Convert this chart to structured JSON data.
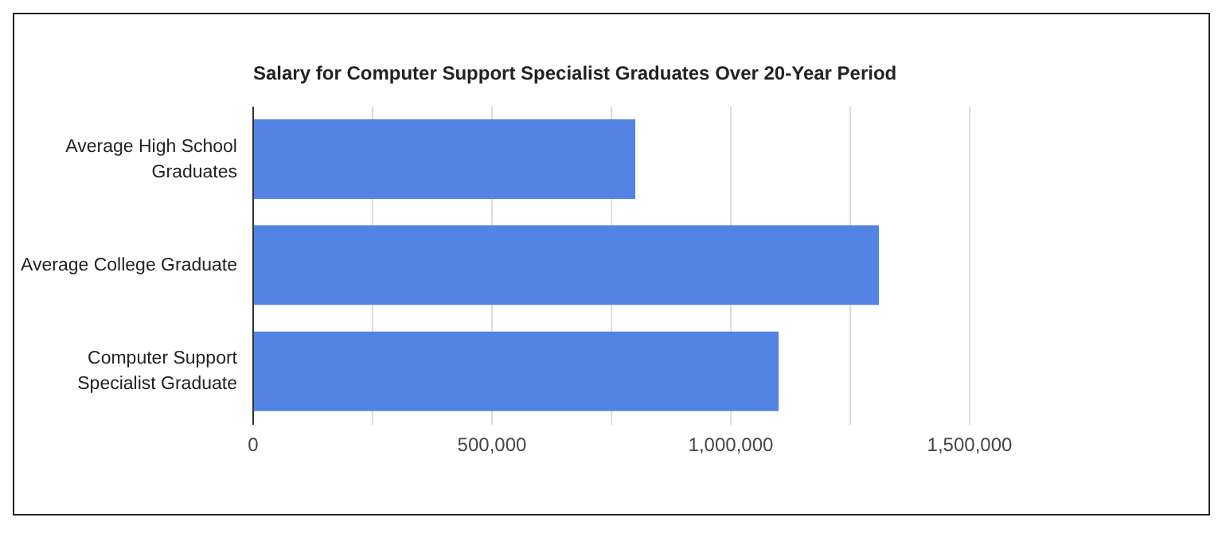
{
  "chart_data": {
    "type": "bar",
    "orientation": "horizontal",
    "title": "Salary for Computer Support Specialist Graduates Over 20-Year Period",
    "categories": [
      "Average High School Graduates",
      "Average College Graduate",
      "Computer Support Specialist Graduate"
    ],
    "values": [
      800000,
      1310000,
      1100000
    ],
    "color": "#5384e4",
    "xlim": [
      0,
      1500000
    ],
    "xticks": [
      0,
      {
        "value": 250000,
        "label": null
      },
      {
        "value": 500000,
        "label": "500,000"
      },
      {
        "value": 750000,
        "label": null
      },
      {
        "value": 1000000,
        "label": "1,000,000"
      },
      {
        "value": 1250000,
        "label": null
      },
      {
        "value": 1500000,
        "label": "1,500,000"
      }
    ],
    "grid": "x",
    "legend": false
  }
}
